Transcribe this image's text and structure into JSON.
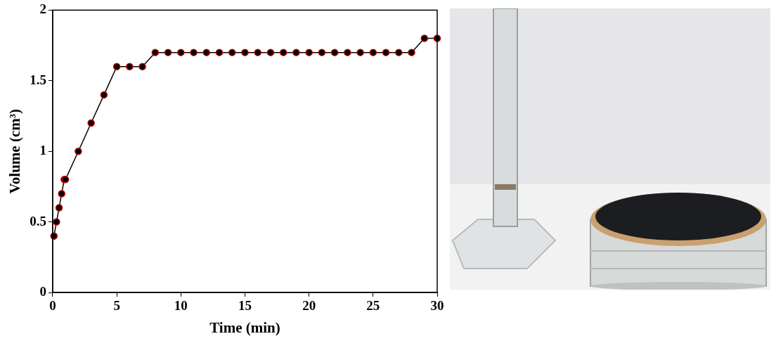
{
  "chart_data": {
    "type": "line",
    "x_label": "Time (min)",
    "y_label": "Volume (cm³)",
    "x": [
      0.1,
      0.3,
      0.5,
      0.7,
      0.9,
      1,
      2,
      3,
      4,
      5,
      6,
      7,
      8,
      9,
      10,
      11,
      12,
      13,
      14,
      15,
      16,
      17,
      18,
      19,
      20,
      21,
      22,
      23,
      24,
      25,
      26,
      27,
      28,
      29,
      30
    ],
    "values": [
      0.4,
      0.5,
      0.6,
      0.7,
      0.8,
      0.8,
      1.0,
      1.2,
      1.4,
      1.6,
      1.6,
      1.6,
      1.7,
      1.7,
      1.7,
      1.7,
      1.7,
      1.7,
      1.7,
      1.7,
      1.7,
      1.7,
      1.7,
      1.7,
      1.7,
      1.7,
      1.7,
      1.7,
      1.7,
      1.7,
      1.7,
      1.7,
      1.7,
      1.8,
      1.8
    ],
    "color": "#000000",
    "marker": "circle",
    "line_style": "solid",
    "xlim": [
      0,
      30
    ],
    "xticks": [
      0,
      5,
      10,
      15,
      20,
      25,
      30
    ],
    "ylim": [
      0,
      2
    ],
    "yticks": [
      0,
      0.5,
      1,
      1.5,
      2
    ],
    "grid": false
  }
}
